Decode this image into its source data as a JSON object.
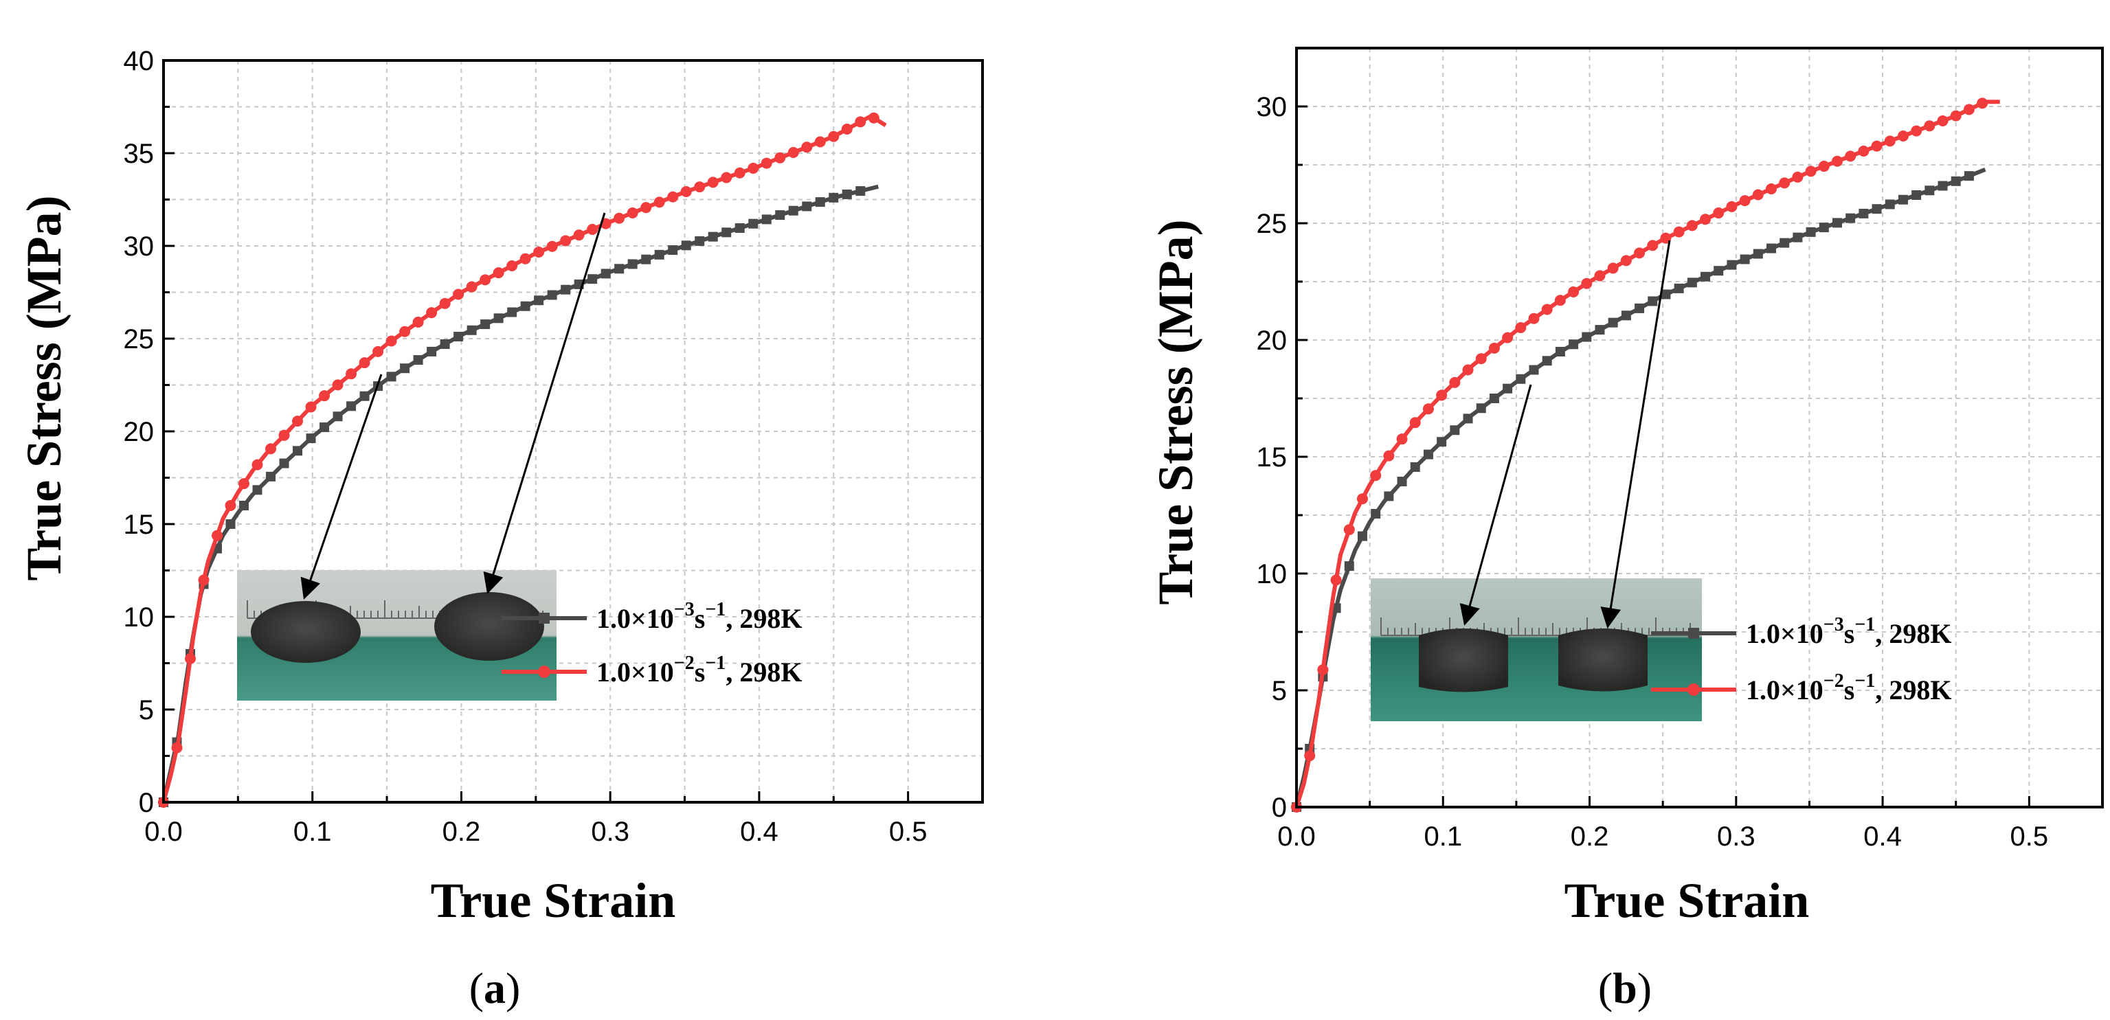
{
  "chart_data": [
    {
      "panel": "(a)",
      "type": "line",
      "xlabel": "True Strain",
      "ylabel": "True Stress (MPa)",
      "xlim": [
        0,
        0.55
      ],
      "ylim": [
        0,
        40
      ],
      "xticks": [
        "0.0",
        "0.1",
        "0.2",
        "0.3",
        "0.4",
        "0.5"
      ],
      "yticks": [
        "0",
        "5",
        "10",
        "15",
        "20",
        "25",
        "30",
        "35",
        "40"
      ],
      "grid": true,
      "legend_position": "bottom-right",
      "inset": "photo of two compressed cylindrical specimens on a ruler",
      "series": [
        {
          "name": "1.0×10",
          "sup": "−3",
          "mid": "s",
          "sup2": "−1",
          "tail": ", 298K",
          "color": "#4a4a4a",
          "marker": "square",
          "x": [
            0,
            0.005,
            0.01,
            0.015,
            0.02,
            0.025,
            0.03,
            0.04,
            0.05,
            0.06,
            0.07,
            0.08,
            0.1,
            0.12,
            0.15,
            0.18,
            0.2,
            0.25,
            0.3,
            0.35,
            0.4,
            0.45,
            0.48
          ],
          "y": [
            0,
            1.8,
            3.6,
            6.5,
            9.0,
            11.2,
            12.6,
            14.4,
            15.6,
            16.6,
            17.4,
            18.2,
            19.7,
            21.0,
            22.8,
            24.3,
            25.2,
            27.0,
            28.6,
            30.0,
            31.3,
            32.6,
            33.2
          ]
        },
        {
          "name": "1.0×10",
          "sup": "−2",
          "mid": "s",
          "sup2": "−1",
          "tail": ", 298K",
          "color": "#f03c3c",
          "marker": "circle",
          "x": [
            0,
            0.005,
            0.01,
            0.015,
            0.02,
            0.025,
            0.03,
            0.04,
            0.05,
            0.06,
            0.07,
            0.08,
            0.1,
            0.12,
            0.15,
            0.18,
            0.2,
            0.25,
            0.3,
            0.35,
            0.4,
            0.45,
            0.475,
            0.485
          ],
          "y": [
            0,
            1.5,
            3.3,
            6.0,
            8.9,
            11.3,
            13.0,
            15.3,
            16.7,
            17.9,
            18.9,
            19.7,
            21.4,
            22.7,
            24.7,
            26.4,
            27.5,
            29.6,
            31.3,
            32.9,
            34.3,
            35.9,
            37.0,
            36.5
          ]
        }
      ]
    },
    {
      "panel": "(b)",
      "type": "line",
      "xlabel": "True Strain",
      "ylabel": "True Stress (MPa)",
      "xlim": [
        0,
        0.55
      ],
      "ylim": [
        0,
        32.5
      ],
      "xticks": [
        "0.0",
        "0.1",
        "0.2",
        "0.3",
        "0.4",
        "0.5"
      ],
      "yticks": [
        "0",
        "5",
        "10",
        "15",
        "20",
        "25",
        "30"
      ],
      "grid": true,
      "legend_position": "bottom-right",
      "inset": "photo of two compressed cylindrical specimens on a ruler",
      "series": [
        {
          "name": "1.0×10",
          "sup": "−3",
          "mid": "s",
          "sup2": "−1",
          "tail": ", 298K",
          "color": "#4a4a4a",
          "marker": "square",
          "x": [
            0,
            0.005,
            0.01,
            0.015,
            0.02,
            0.025,
            0.03,
            0.04,
            0.05,
            0.06,
            0.07,
            0.08,
            0.1,
            0.12,
            0.15,
            0.18,
            0.2,
            0.25,
            0.3,
            0.35,
            0.4,
            0.45,
            0.47
          ],
          "y": [
            0,
            1.3,
            2.8,
            4.5,
            6.3,
            8.0,
            9.3,
            11.0,
            12.2,
            13.1,
            13.8,
            14.5,
            15.7,
            16.8,
            18.2,
            19.5,
            20.2,
            21.9,
            23.3,
            24.6,
            25.7,
            26.8,
            27.3
          ]
        },
        {
          "name": "1.0×10",
          "sup": "−2",
          "mid": "s",
          "sup2": "−1",
          "tail": ", 298K",
          "color": "#f03c3c",
          "marker": "circle",
          "x": [
            0,
            0.005,
            0.01,
            0.015,
            0.02,
            0.025,
            0.03,
            0.04,
            0.05,
            0.06,
            0.07,
            0.08,
            0.1,
            0.12,
            0.15,
            0.18,
            0.2,
            0.25,
            0.3,
            0.35,
            0.4,
            0.45,
            0.47,
            0.48
          ],
          "y": [
            0,
            1.0,
            2.5,
            4.5,
            6.8,
            9.0,
            10.8,
            12.6,
            13.8,
            14.8,
            15.6,
            16.4,
            17.7,
            18.9,
            20.4,
            21.7,
            22.5,
            24.3,
            25.8,
            27.2,
            28.4,
            29.6,
            30.2,
            30.2
          ]
        }
      ]
    }
  ]
}
